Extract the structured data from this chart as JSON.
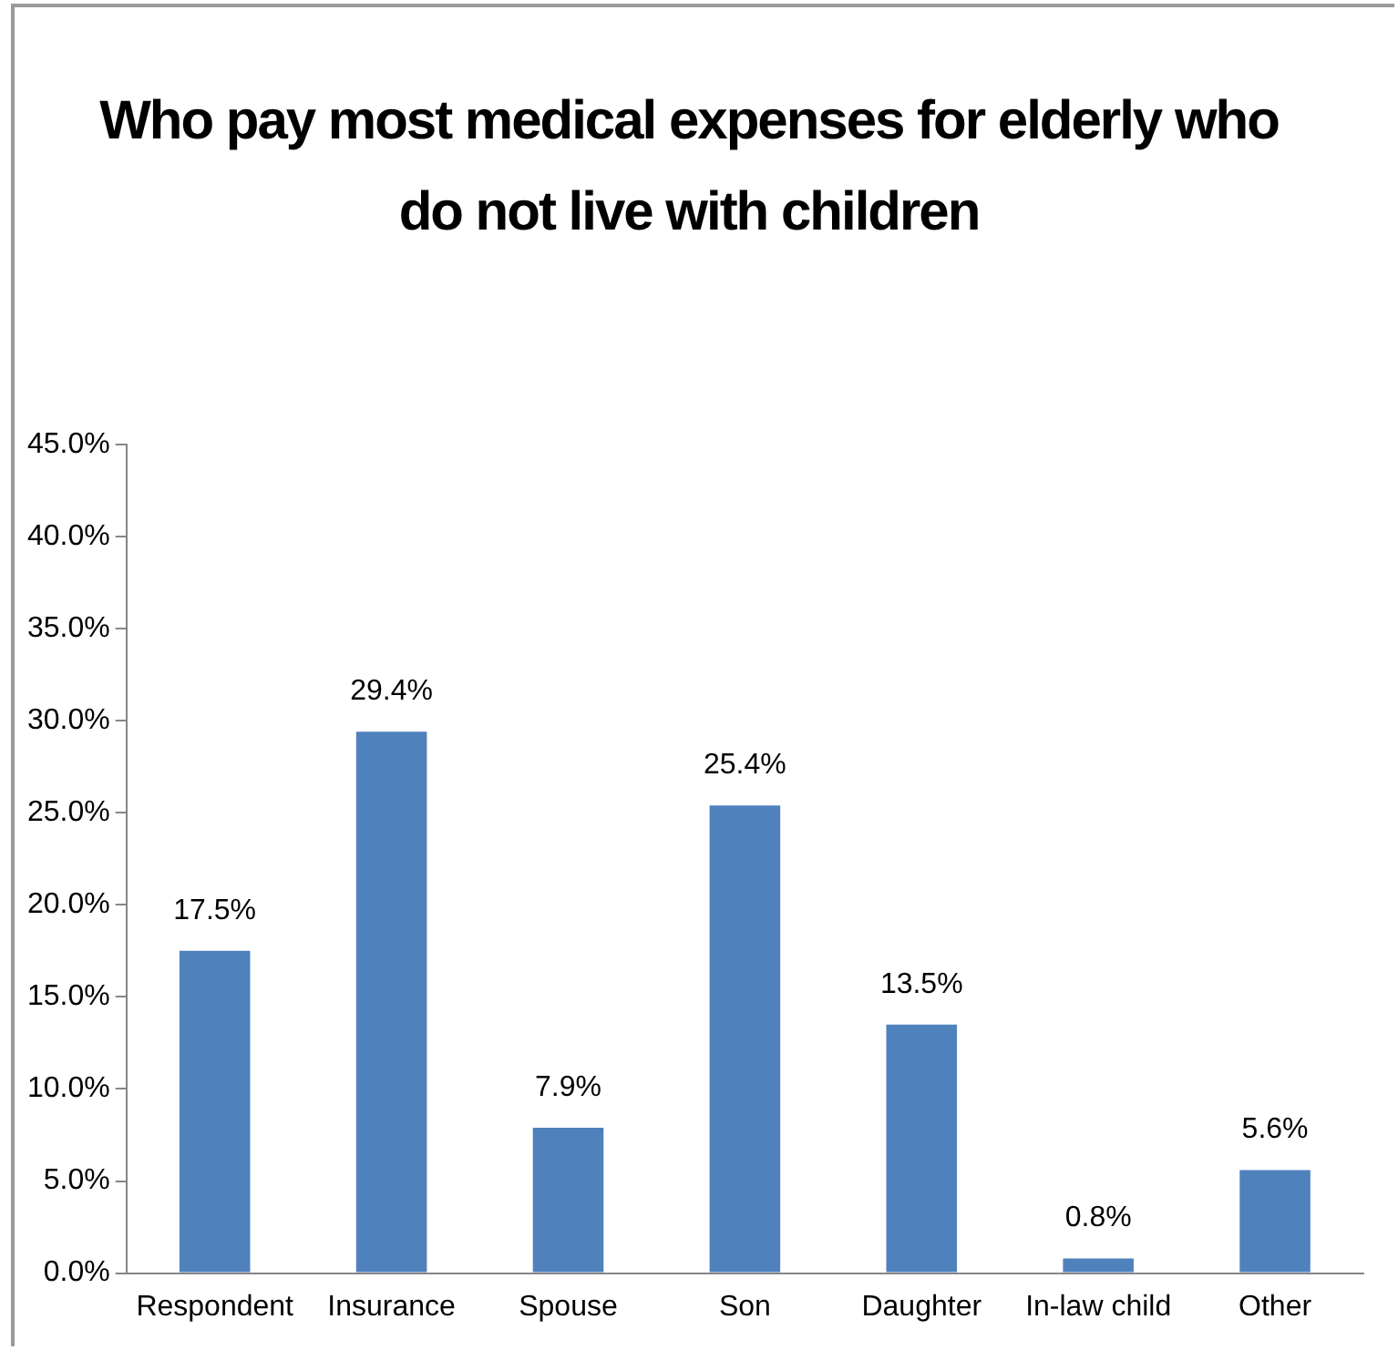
{
  "chart_data": {
    "type": "bar",
    "title": "Who pay most medical expenses for elderly who do not live with children",
    "categories": [
      "Respondent",
      "Insurance",
      "Spouse",
      "Son",
      "Daughter",
      "In-law child",
      "Other"
    ],
    "values": [
      17.5,
      29.4,
      7.9,
      25.4,
      13.5,
      0.8,
      5.6
    ],
    "value_labels": [
      "17.5%",
      "29.4%",
      "7.9%",
      "25.4%",
      "13.5%",
      "0.8%",
      "5.6%"
    ],
    "color": "#4f81bd",
    "ylim": [
      0,
      45
    ],
    "yticks": [
      {
        "value": 0,
        "label": "0.0%"
      },
      {
        "value": 5,
        "label": "5.0%"
      },
      {
        "value": 10,
        "label": "10.0%"
      },
      {
        "value": 15,
        "label": "15.0%"
      },
      {
        "value": 20,
        "label": "20.0%"
      },
      {
        "value": 25,
        "label": "25.0%"
      },
      {
        "value": 30,
        "label": "30.0%"
      },
      {
        "value": 35,
        "label": "35.0%"
      },
      {
        "value": 40,
        "label": "40.0%"
      },
      {
        "value": 45,
        "label": "45.0%"
      }
    ],
    "grid": false,
    "legend": false
  }
}
